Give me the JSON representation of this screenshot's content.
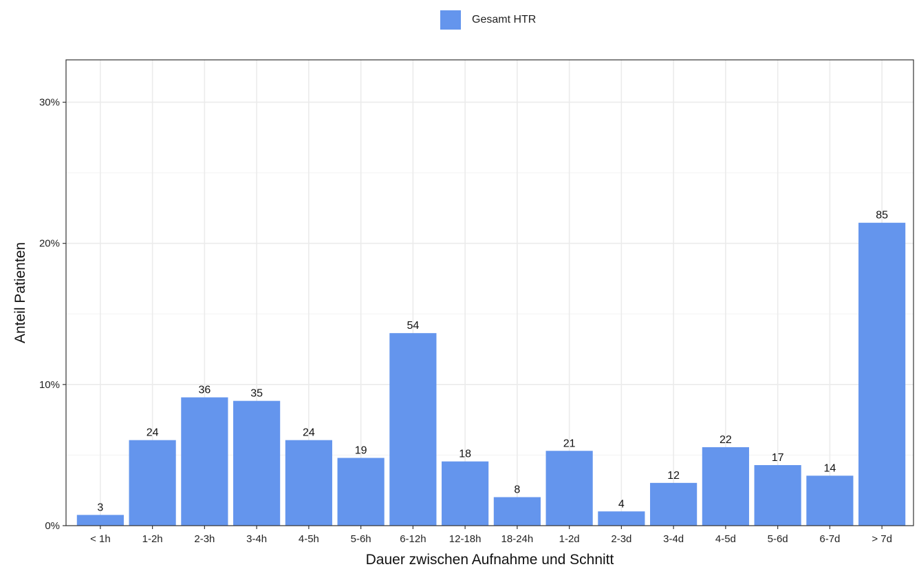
{
  "colors": {
    "bar": "#6495ED",
    "grid": "#ebebeb",
    "panel_border": "#333333",
    "text": "#1a1a1a"
  },
  "legend": {
    "label": "Gesamt HTR",
    "placement": "top-center"
  },
  "chart_data": {
    "type": "bar",
    "xlabel": "Dauer zwischen Aufnahme und Schnitt",
    "ylabel": "Anteil Patienten",
    "categories": [
      "< 1h",
      "1-2h",
      "2-3h",
      "3-4h",
      "4-5h",
      "5-6h",
      "6-12h",
      "12-18h",
      "18-24h",
      "1-2d",
      "2-3d",
      "3-4d",
      "4-5d",
      "5-6d",
      "6-7d",
      "> 7d"
    ],
    "series": [
      {
        "name": "Gesamt HTR",
        "values": [
          0.76,
          6.06,
          9.09,
          8.84,
          6.06,
          4.8,
          13.64,
          4.55,
          2.02,
          5.3,
          1.01,
          3.03,
          5.56,
          4.29,
          3.54,
          21.46
        ],
        "labels": [
          "3",
          "24",
          "36",
          "35",
          "24",
          "19",
          "54",
          "18",
          "8",
          "21",
          "4",
          "12",
          "22",
          "17",
          "14",
          "85"
        ]
      }
    ],
    "ylim": [
      0,
      33
    ],
    "yticks": [
      0,
      10,
      20,
      30
    ],
    "ytick_labels": [
      "0%",
      "10%",
      "20%",
      "30%"
    ],
    "grid": true
  }
}
